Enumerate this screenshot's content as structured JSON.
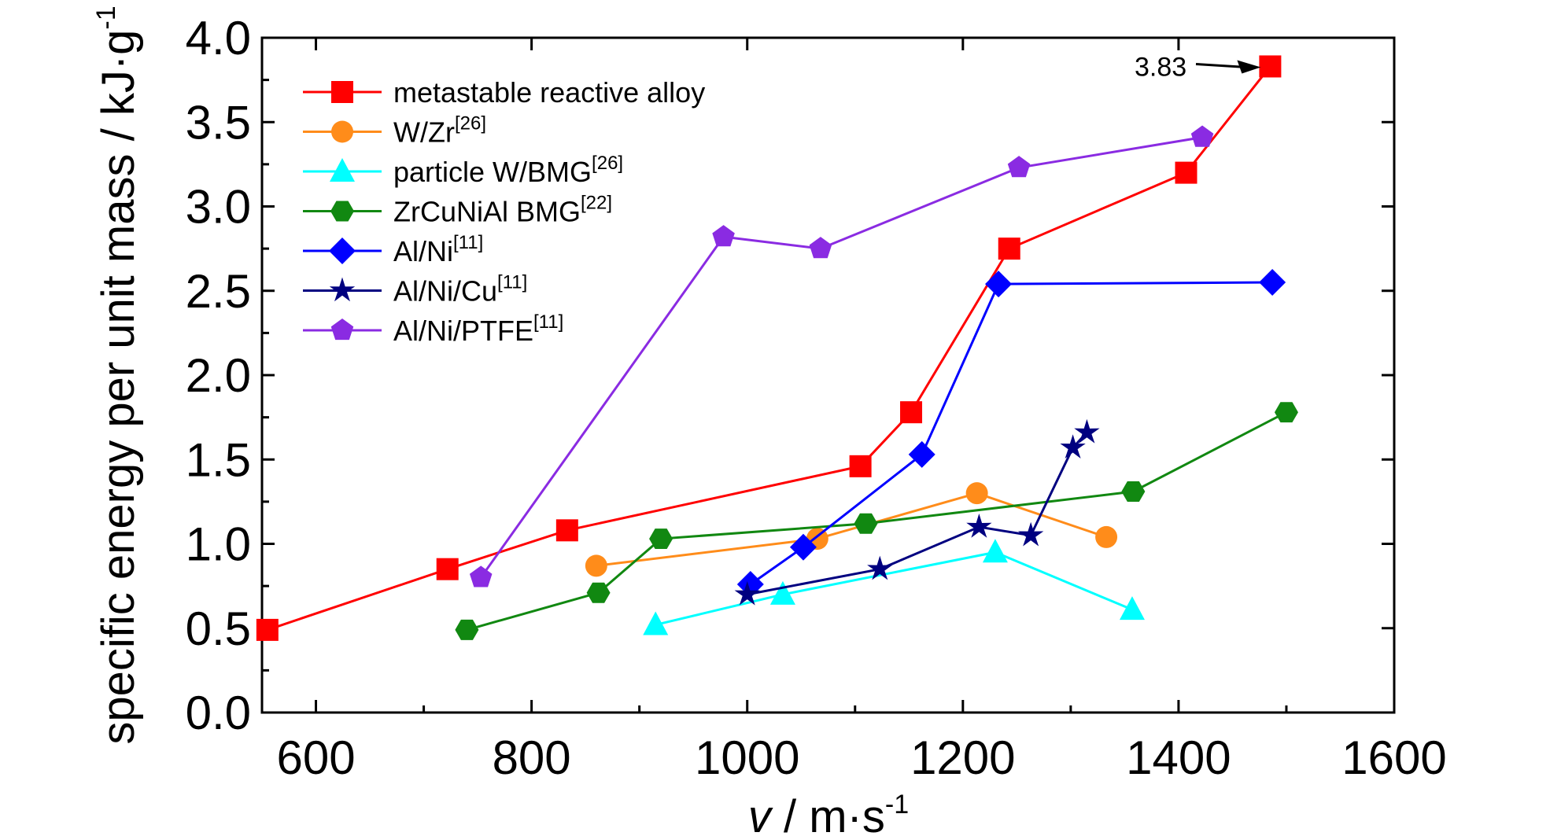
{
  "chart_data": {
    "type": "line",
    "xlabel": {
      "italic": "v",
      "unit": " / m·s",
      "sup": "-1"
    },
    "ylabel": {
      "text": "specific energy per unit mass / kJ·g",
      "sup": "-1"
    },
    "xlim": [
      550,
      1600
    ],
    "ylim": [
      0.0,
      4.0
    ],
    "x_ticks": [
      600,
      800,
      1000,
      1200,
      1400,
      1600
    ],
    "x_tick_labels": [
      "600",
      "800",
      "1000",
      "1200",
      "1400",
      "1600"
    ],
    "y_ticks": [
      0.0,
      0.5,
      1.0,
      1.5,
      2.0,
      2.5,
      3.0,
      3.5,
      4.0
    ],
    "y_tick_labels": [
      "0.0",
      "0.5",
      "1.0",
      "1.5",
      "2.0",
      "2.5",
      "3.0",
      "3.5",
      "4.0"
    ],
    "grid": false,
    "legend_position": "top-left",
    "annotation": {
      "text": "3.83",
      "x": 1485,
      "y": 3.83
    },
    "series": [
      {
        "name": "metastable reactive alloy",
        "ref": "",
        "color": "#ff0000",
        "marker": "square",
        "points": [
          [
            555,
            0.49
          ],
          [
            722,
            0.85
          ],
          [
            833,
            1.08
          ],
          [
            1105,
            1.46
          ],
          [
            1152,
            1.78
          ],
          [
            1243,
            2.75
          ],
          [
            1407,
            3.2
          ],
          [
            1485,
            3.83
          ]
        ]
      },
      {
        "name": "W/Zr",
        "ref": "[26]",
        "color": "#ff8c1a",
        "marker": "circle",
        "points": [
          [
            860,
            0.87
          ],
          [
            1065,
            1.03
          ],
          [
            1213,
            1.3
          ],
          [
            1333,
            1.04
          ]
        ]
      },
      {
        "name": "particle W/BMG",
        "ref": "[26]",
        "color": "#00ffff",
        "marker": "triangle",
        "points": [
          [
            915,
            0.52
          ],
          [
            1033,
            0.7
          ],
          [
            1230,
            0.95
          ],
          [
            1357,
            0.61
          ]
        ]
      },
      {
        "name": "ZrCuNiAl BMG",
        "ref": "[22]",
        "color": "#118811",
        "marker": "hexagon",
        "points": [
          [
            740,
            0.49
          ],
          [
            862,
            0.71
          ],
          [
            920,
            1.03
          ],
          [
            1110,
            1.12
          ],
          [
            1358,
            1.31
          ],
          [
            1500,
            1.78
          ]
        ]
      },
      {
        "name": "Al/Ni",
        "ref": "[11]",
        "color": "#0000ff",
        "marker": "diamond",
        "points": [
          [
            1003,
            0.76
          ],
          [
            1052,
            0.98
          ],
          [
            1162,
            1.53
          ],
          [
            1233,
            2.54
          ],
          [
            1487,
            2.55
          ]
        ]
      },
      {
        "name": "Al/Ni/Cu",
        "ref": "[11]",
        "color": "#000080",
        "marker": "star",
        "points": [
          [
            1000,
            0.7
          ],
          [
            1123,
            0.85
          ],
          [
            1215,
            1.1
          ],
          [
            1263,
            1.05
          ],
          [
            1302,
            1.57
          ],
          [
            1315,
            1.66
          ]
        ]
      },
      {
        "name": "Al/Ni/PTFE",
        "ref": "[11]",
        "color": "#8a2be2",
        "marker": "pentagon",
        "points": [
          [
            753,
            0.8
          ],
          [
            978,
            2.82
          ],
          [
            1068,
            2.75
          ],
          [
            1252,
            3.23
          ],
          [
            1422,
            3.41
          ]
        ]
      }
    ]
  }
}
